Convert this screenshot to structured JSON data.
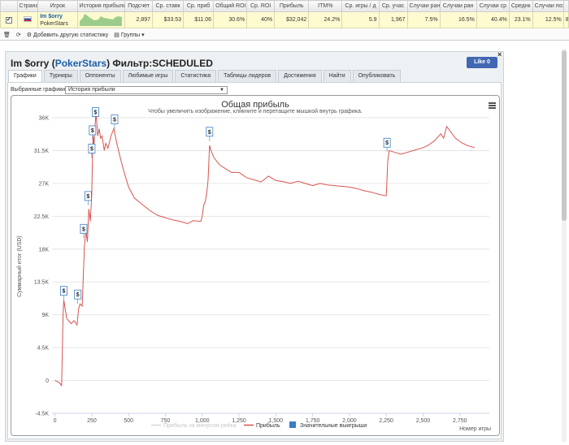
{
  "stats": {
    "headers": [
      "Страна",
      "Игрок",
      "История прибыли",
      "Подсчет",
      "Ср. ставк",
      "Ср. приб",
      "Общий ROI",
      "Ср. ROI",
      "Прибыль",
      "ITM%",
      "Ср. игры / д",
      "Ср. учас",
      "Случаи ран",
      "Случаи ран",
      "Случаи ср",
      "Среднк",
      "Случаи поз"
    ],
    "row": {
      "player": "Im $orry",
      "room": "PokerStars",
      "count": "2,897",
      "avg_stake": "$33.53",
      "avg_profit": "$11.06",
      "total_roi": "30.6%",
      "avg_roi": "40%",
      "profit": "$32,042",
      "itm": "24.2%",
      "games_per_day": "5.9",
      "avg_entrants": "1,967",
      "early_finish": "7.5%",
      "early_finish2": "16.5%",
      "mid_finish": "40.4%",
      "avg": "23.1%",
      "late_finish": "12.5%"
    },
    "row_end": "8"
  },
  "toolbar": {
    "add_stats": "Добавить другую статистику",
    "groups": "Группы"
  },
  "panel": {
    "player": "Im $orry",
    "room_open": "(",
    "room": "PokerStars",
    "room_close": ")",
    "filter_label": "Фильтр:",
    "filter_value": "SCHEDULED",
    "fb_like": "Like 0",
    "close": "×",
    "tabs": [
      "Графики",
      "Турниры",
      "Оппоненты",
      "Любимые игры",
      "Статистика",
      "Таблицы лидеров",
      "Достижения",
      "Найти",
      "Опубликовать"
    ],
    "selected_charts_label": "Выбранные графики:",
    "selected_chart": "История прибыли"
  },
  "chart_data": {
    "type": "line",
    "title": "Общая прибыль",
    "subtitle": "Чтобы увеличить изображение, кликните и перетащите мышкой внутрь графика.",
    "ylabel": "Суммарный итог (USD)",
    "xlabel": "Номер игры",
    "yticks": [
      "-4.5K",
      "0",
      "4.5K",
      "9K",
      "13.5K",
      "18K",
      "22.5K",
      "27K",
      "31.5K",
      "36K"
    ],
    "ylim": [
      -4500,
      36000
    ],
    "xticks": [
      "0",
      "250",
      "500",
      "750",
      "1,000",
      "1,250",
      "1,500",
      "1,750",
      "2,000",
      "2,250",
      "2,500",
      "2,750"
    ],
    "xlim": [
      -20,
      2950
    ],
    "legend": [
      "Прибыль за минусом рейка",
      "Прибыль",
      "Значительные выигрыши"
    ],
    "legend_position": "bottom",
    "colors": {
      "profit": "#d9534f",
      "rake": "#d6d6d6",
      "wins": "#3b7dc4"
    },
    "series": [
      {
        "name": "Прибыль",
        "points": [
          [
            0,
            0
          ],
          [
            30,
            -300
          ],
          [
            45,
            -700
          ],
          [
            55,
            9000
          ],
          [
            60,
            11000
          ],
          [
            80,
            8500
          ],
          [
            110,
            7800
          ],
          [
            130,
            8200
          ],
          [
            150,
            7600
          ],
          [
            160,
            9800
          ],
          [
            170,
            10500
          ],
          [
            185,
            10200
          ],
          [
            200,
            18500
          ],
          [
            210,
            20500
          ],
          [
            220,
            19000
          ],
          [
            230,
            23500
          ],
          [
            240,
            21800
          ],
          [
            250,
            25500
          ],
          [
            255,
            31000
          ],
          [
            260,
            33500
          ],
          [
            265,
            32000
          ],
          [
            270,
            34500
          ],
          [
            280,
            36500
          ],
          [
            290,
            33500
          ],
          [
            300,
            34500
          ],
          [
            310,
            33200
          ],
          [
            320,
            33500
          ],
          [
            335,
            31500
          ],
          [
            345,
            32500
          ],
          [
            360,
            31800
          ],
          [
            380,
            33500
          ],
          [
            400,
            34500
          ],
          [
            420,
            32500
          ],
          [
            450,
            30000
          ],
          [
            470,
            28500
          ],
          [
            500,
            26500
          ],
          [
            540,
            25000
          ],
          [
            600,
            24000
          ],
          [
            650,
            23200
          ],
          [
            700,
            22600
          ],
          [
            750,
            22300
          ],
          [
            800,
            22000
          ],
          [
            850,
            21800
          ],
          [
            900,
            21500
          ],
          [
            940,
            21900
          ],
          [
            990,
            21800
          ],
          [
            1000,
            22500
          ],
          [
            1010,
            24000
          ],
          [
            1020,
            24500
          ],
          [
            1030,
            25500
          ],
          [
            1040,
            27500
          ],
          [
            1050,
            32200
          ],
          [
            1060,
            31500
          ],
          [
            1080,
            30500
          ],
          [
            1120,
            29500
          ],
          [
            1160,
            29000
          ],
          [
            1200,
            28500
          ],
          [
            1250,
            28500
          ],
          [
            1300,
            27800
          ],
          [
            1350,
            27500
          ],
          [
            1400,
            27200
          ],
          [
            1450,
            28000
          ],
          [
            1500,
            27400
          ],
          [
            1560,
            27200
          ],
          [
            1600,
            27000
          ],
          [
            1650,
            27300
          ],
          [
            1700,
            27000
          ],
          [
            1750,
            26700
          ],
          [
            1800,
            27000
          ],
          [
            1850,
            26800
          ],
          [
            1900,
            26700
          ],
          [
            1950,
            26600
          ],
          [
            2000,
            26500
          ],
          [
            2050,
            26300
          ],
          [
            2100,
            26000
          ],
          [
            2150,
            25800
          ],
          [
            2200,
            25500
          ],
          [
            2250,
            25300
          ],
          [
            2260,
            30000
          ],
          [
            2270,
            31500
          ],
          [
            2300,
            31300
          ],
          [
            2350,
            31000
          ],
          [
            2400,
            31300
          ],
          [
            2450,
            31600
          ],
          [
            2500,
            31900
          ],
          [
            2540,
            32300
          ],
          [
            2580,
            32900
          ],
          [
            2620,
            33800
          ],
          [
            2640,
            33200
          ],
          [
            2660,
            34800
          ],
          [
            2690,
            34000
          ],
          [
            2720,
            33200
          ],
          [
            2760,
            32600
          ],
          [
            2800,
            32200
          ],
          [
            2850,
            31900
          ]
        ]
      }
    ],
    "big_wins": [
      [
        60,
        11000
      ],
      [
        155,
        10500
      ],
      [
        195,
        19500
      ],
      [
        225,
        24000
      ],
      [
        250,
        30500
      ],
      [
        255,
        33000
      ],
      [
        275,
        35500
      ],
      [
        405,
        34500
      ],
      [
        1050,
        32800
      ],
      [
        2255,
        31300
      ]
    ],
    "big_win_marker": "$"
  }
}
